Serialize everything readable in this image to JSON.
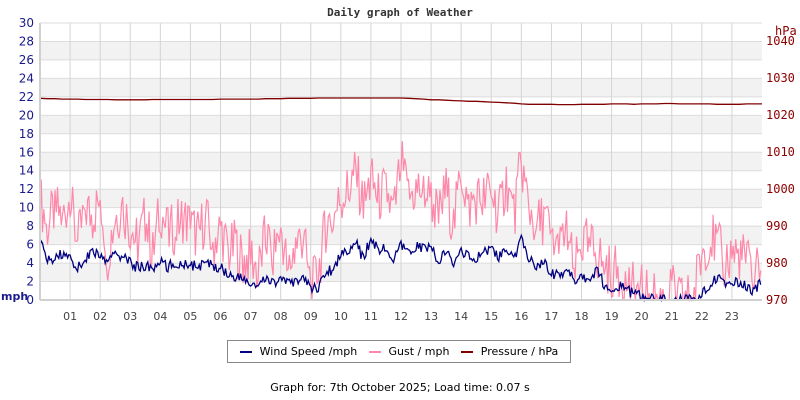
{
  "title": "Daily graph of Weather",
  "footer": "Graph for: 7th October 2025; Load time: 0.07 s",
  "legend": [
    {
      "label": "Wind Speed /mph",
      "color": "#000080"
    },
    {
      "label": "Gust / mph",
      "color": "#ff88aa"
    },
    {
      "label": "Pressure / hPa",
      "color": "#800000"
    }
  ],
  "chart_data": {
    "type": "line",
    "title": "Daily graph of Weather",
    "xlabel": "",
    "ylabel": "mph",
    "ylabel_right": "hPa",
    "ylim": [
      0,
      30
    ],
    "ylim_right": [
      970,
      1040
    ],
    "x_tick_labels": [
      "01",
      "02",
      "03",
      "04",
      "05",
      "06",
      "07",
      "08",
      "09",
      "10",
      "11",
      "12",
      "13",
      "14",
      "15",
      "16",
      "17",
      "18",
      "19",
      "20",
      "21",
      "22",
      "23"
    ],
    "y_ticks_left": [
      0,
      2,
      4,
      6,
      8,
      10,
      12,
      14,
      16,
      18,
      20,
      22,
      24,
      26,
      28,
      30
    ],
    "y_ticks_right": [
      970,
      980,
      990,
      1000,
      1010,
      1020,
      1030,
      1040
    ],
    "grid": true,
    "legend_position": "bottom",
    "x_hours": [
      0,
      0.25,
      0.5,
      0.75,
      1,
      1.25,
      1.5,
      1.75,
      2,
      2.25,
      2.5,
      2.75,
      3,
      3.25,
      3.5,
      3.75,
      4,
      4.25,
      4.5,
      4.75,
      5,
      5.25,
      5.5,
      5.75,
      6,
      6.25,
      6.5,
      6.75,
      7,
      7.25,
      7.5,
      7.75,
      8,
      8.25,
      8.5,
      8.75,
      9,
      9.25,
      9.5,
      9.75,
      10,
      10.25,
      10.5,
      10.75,
      11,
      11.25,
      11.5,
      11.75,
      12,
      12.25,
      12.5,
      12.75,
      13,
      13.25,
      13.5,
      13.75,
      14,
      14.25,
      14.5,
      14.75,
      15,
      15.25,
      15.5,
      15.75,
      16,
      16.25,
      16.5,
      16.75,
      17,
      17.25,
      17.5,
      17.75,
      18,
      18.25,
      18.5,
      18.75,
      19,
      19.25,
      19.5,
      19.75,
      20,
      20.25,
      20.5,
      20.75,
      21,
      21.25,
      21.5,
      21.75,
      22,
      22.25,
      22.5,
      22.75,
      23,
      23.25,
      23.5,
      23.75,
      24
    ],
    "series": [
      {
        "name": "Wind Speed /mph",
        "axis": "left",
        "color": "#000080",
        "values": [
          6.5,
          4.2,
          4.6,
          5.0,
          4.8,
          3.4,
          4.5,
          5.2,
          4.9,
          3.8,
          5.3,
          4.6,
          4.0,
          3.5,
          3.8,
          3.2,
          4.2,
          3.6,
          3.9,
          4.0,
          3.9,
          3.5,
          4.0,
          3.7,
          3.6,
          2.8,
          2.6,
          2.2,
          1.8,
          1.5,
          2.2,
          1.9,
          2.4,
          1.6,
          2.0,
          2.5,
          1.2,
          1.5,
          3.0,
          3.4,
          5.0,
          5.6,
          6.2,
          4.4,
          6.8,
          5.4,
          5.6,
          4.2,
          5.8,
          5.0,
          5.9,
          5.6,
          5.6,
          4.3,
          5.2,
          3.8,
          5.5,
          4.6,
          4.4,
          5.1,
          5.8,
          4.6,
          5.4,
          4.3,
          6.5,
          4.5,
          3.8,
          4.1,
          3.0,
          2.6,
          3.2,
          2.2,
          2.6,
          2.3,
          3.1,
          1.8,
          1.3,
          1.5,
          1.0,
          0.7,
          0.4,
          0.1,
          0.1,
          0.1,
          0.1,
          0.1,
          0.1,
          0.1,
          0.9,
          1.5,
          2.5,
          1.5,
          1.7,
          2.0,
          1.3,
          0.9,
          2.2,
          2.6,
          2.9,
          2.5,
          2.7,
          2.9
        ]
      },
      {
        "name": "Gust / mph",
        "axis": "left",
        "color": "#ff88aa",
        "values": [
          11,
          8,
          10,
          9,
          11,
          6,
          10,
          9,
          11,
          5,
          9,
          10,
          8,
          6,
          9,
          5,
          10,
          7,
          8,
          9,
          8,
          7,
          9,
          6,
          8,
          5,
          6,
          4,
          5,
          3,
          7,
          5,
          8,
          3,
          6,
          7,
          1,
          3,
          8,
          9,
          11,
          12,
          14,
          10,
          13,
          11,
          12,
          9,
          15,
          11,
          12,
          12,
          11,
          9,
          12,
          8,
          14,
          10,
          11,
          11,
          12,
          9,
          13,
          9,
          15,
          10,
          8,
          9,
          7,
          5,
          8,
          3,
          6,
          6,
          5,
          4,
          3,
          3,
          2,
          1,
          1,
          1,
          0,
          0,
          1,
          0,
          0,
          1,
          5,
          7,
          6,
          4,
          5,
          5,
          4,
          3,
          5,
          8,
          8,
          6,
          7,
          8
        ]
      },
      {
        "name": "Pressure / hPa",
        "axis": "right",
        "color": "#800000",
        "values": [
          1024.5,
          1024.4,
          1024.4,
          1024.3,
          1024.3,
          1024.3,
          1024.2,
          1024.2,
          1024.2,
          1024.2,
          1024.1,
          1024.1,
          1024.1,
          1024.1,
          1024.1,
          1024.2,
          1024.2,
          1024.2,
          1024.2,
          1024.2,
          1024.2,
          1024.2,
          1024.2,
          1024.2,
          1024.3,
          1024.3,
          1024.3,
          1024.3,
          1024.3,
          1024.3,
          1024.4,
          1024.4,
          1024.4,
          1024.5,
          1024.5,
          1024.5,
          1024.5,
          1024.6,
          1024.6,
          1024.6,
          1024.6,
          1024.6,
          1024.6,
          1024.6,
          1024.6,
          1024.6,
          1024.6,
          1024.6,
          1024.6,
          1024.5,
          1024.4,
          1024.3,
          1024.1,
          1024.1,
          1024.0,
          1023.9,
          1023.8,
          1023.7,
          1023.7,
          1023.6,
          1023.5,
          1023.4,
          1023.3,
          1023.2,
          1023.0,
          1022.9,
          1022.9,
          1022.9,
          1022.9,
          1022.8,
          1022.8,
          1022.8,
          1022.9,
          1022.9,
          1022.9,
          1022.9,
          1023.0,
          1023.0,
          1023.0,
          1022.9,
          1023.0,
          1023.0,
          1023.0,
          1023.1,
          1023.1,
          1023.0,
          1023.0,
          1023.0,
          1023.0,
          1023.0,
          1022.9,
          1022.9,
          1022.9,
          1022.9,
          1023.0,
          1023.0,
          1023.0
        ]
      }
    ]
  }
}
